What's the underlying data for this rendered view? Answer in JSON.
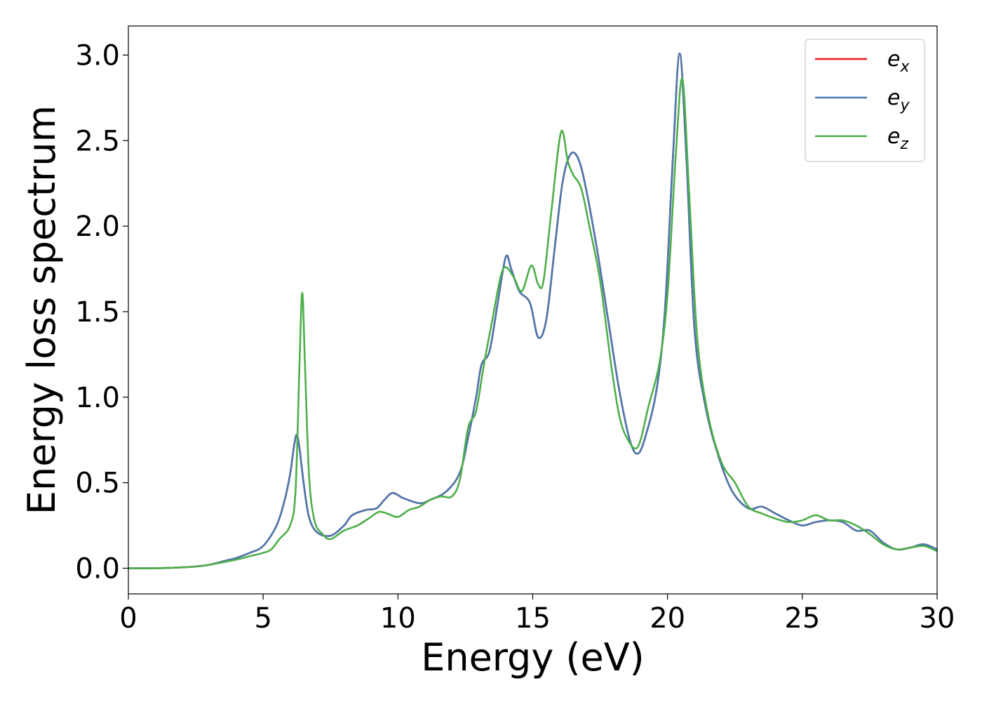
{
  "chart_data": {
    "type": "line",
    "title": "",
    "xlabel": "Energy (eV)",
    "ylabel": "Energy loss spectrum",
    "xlim": [
      0,
      30
    ],
    "ylim": [
      -0.15,
      3.17
    ],
    "xticks": [
      0,
      5,
      10,
      15,
      20,
      25,
      30
    ],
    "xtick_labels": [
      "0",
      "5",
      "10",
      "15",
      "20",
      "25",
      "30"
    ],
    "yticks": [
      0.0,
      0.5,
      1.0,
      1.5,
      2.0,
      2.5,
      3.0
    ],
    "ytick_labels": [
      "0.0",
      "0.5",
      "1.0",
      "1.5",
      "2.0",
      "2.5",
      "3.0"
    ],
    "grid": false,
    "legend_position": "top-right",
    "series": [
      {
        "name": "e_x",
        "label_base": "e",
        "label_sub": "x",
        "color": "#e41a1c",
        "points": [
          [
            0,
            0.0
          ],
          [
            1,
            0.0
          ],
          [
            2,
            0.005
          ],
          [
            2.5,
            0.01
          ],
          [
            3,
            0.02
          ],
          [
            3.5,
            0.04
          ],
          [
            4,
            0.06
          ],
          [
            4.5,
            0.09
          ],
          [
            5,
            0.13
          ],
          [
            5.5,
            0.25
          ],
          [
            5.8,
            0.4
          ],
          [
            6.0,
            0.55
          ],
          [
            6.15,
            0.72
          ],
          [
            6.25,
            0.78
          ],
          [
            6.35,
            0.7
          ],
          [
            6.5,
            0.5
          ],
          [
            6.7,
            0.3
          ],
          [
            7.0,
            0.21
          ],
          [
            7.5,
            0.19
          ],
          [
            8.0,
            0.25
          ],
          [
            8.3,
            0.31
          ],
          [
            8.8,
            0.34
          ],
          [
            9.2,
            0.35
          ],
          [
            9.5,
            0.4
          ],
          [
            9.8,
            0.44
          ],
          [
            10.2,
            0.41
          ],
          [
            10.8,
            0.38
          ],
          [
            11.2,
            0.4
          ],
          [
            11.8,
            0.45
          ],
          [
            12.3,
            0.56
          ],
          [
            12.6,
            0.76
          ],
          [
            12.9,
            1.0
          ],
          [
            13.1,
            1.19
          ],
          [
            13.4,
            1.27
          ],
          [
            13.7,
            1.55
          ],
          [
            14.0,
            1.82
          ],
          [
            14.2,
            1.75
          ],
          [
            14.5,
            1.62
          ],
          [
            14.9,
            1.55
          ],
          [
            15.2,
            1.35
          ],
          [
            15.5,
            1.45
          ],
          [
            15.8,
            1.85
          ],
          [
            16.1,
            2.25
          ],
          [
            16.4,
            2.42
          ],
          [
            16.7,
            2.39
          ],
          [
            17.0,
            2.2
          ],
          [
            17.4,
            1.85
          ],
          [
            17.8,
            1.45
          ],
          [
            18.2,
            1.05
          ],
          [
            18.6,
            0.75
          ],
          [
            18.9,
            0.67
          ],
          [
            19.2,
            0.78
          ],
          [
            19.6,
            1.05
          ],
          [
            19.9,
            1.5
          ],
          [
            20.2,
            2.4
          ],
          [
            20.45,
            3.01
          ],
          [
            20.7,
            2.4
          ],
          [
            21.0,
            1.4
          ],
          [
            21.4,
            0.95
          ],
          [
            21.9,
            0.65
          ],
          [
            22.4,
            0.45
          ],
          [
            23.0,
            0.35
          ],
          [
            23.5,
            0.36
          ],
          [
            24.0,
            0.32
          ],
          [
            24.5,
            0.28
          ],
          [
            25.0,
            0.25
          ],
          [
            25.5,
            0.27
          ],
          [
            26.0,
            0.28
          ],
          [
            26.5,
            0.27
          ],
          [
            27.0,
            0.22
          ],
          [
            27.5,
            0.22
          ],
          [
            28.0,
            0.15
          ],
          [
            28.5,
            0.11
          ],
          [
            29.0,
            0.12
          ],
          [
            29.5,
            0.14
          ],
          [
            30.0,
            0.11
          ]
        ]
      },
      {
        "name": "e_y",
        "label_base": "e",
        "label_sub": "y",
        "color": "#4a79b0",
        "points": [
          [
            0,
            0.0
          ],
          [
            1,
            0.0
          ],
          [
            2,
            0.005
          ],
          [
            2.5,
            0.01
          ],
          [
            3,
            0.02
          ],
          [
            3.5,
            0.04
          ],
          [
            4,
            0.06
          ],
          [
            4.5,
            0.09
          ],
          [
            5,
            0.13
          ],
          [
            5.5,
            0.25
          ],
          [
            5.8,
            0.4
          ],
          [
            6.0,
            0.55
          ],
          [
            6.15,
            0.72
          ],
          [
            6.25,
            0.78
          ],
          [
            6.35,
            0.7
          ],
          [
            6.5,
            0.5
          ],
          [
            6.7,
            0.3
          ],
          [
            7.0,
            0.21
          ],
          [
            7.5,
            0.19
          ],
          [
            8.0,
            0.25
          ],
          [
            8.3,
            0.31
          ],
          [
            8.8,
            0.34
          ],
          [
            9.2,
            0.35
          ],
          [
            9.5,
            0.4
          ],
          [
            9.8,
            0.44
          ],
          [
            10.2,
            0.41
          ],
          [
            10.8,
            0.38
          ],
          [
            11.2,
            0.4
          ],
          [
            11.8,
            0.45
          ],
          [
            12.3,
            0.56
          ],
          [
            12.6,
            0.76
          ],
          [
            12.9,
            1.0
          ],
          [
            13.1,
            1.19
          ],
          [
            13.4,
            1.27
          ],
          [
            13.7,
            1.55
          ],
          [
            14.0,
            1.82
          ],
          [
            14.2,
            1.75
          ],
          [
            14.5,
            1.62
          ],
          [
            14.9,
            1.55
          ],
          [
            15.2,
            1.35
          ],
          [
            15.5,
            1.45
          ],
          [
            15.8,
            1.85
          ],
          [
            16.1,
            2.25
          ],
          [
            16.4,
            2.42
          ],
          [
            16.7,
            2.39
          ],
          [
            17.0,
            2.2
          ],
          [
            17.4,
            1.85
          ],
          [
            17.8,
            1.45
          ],
          [
            18.2,
            1.05
          ],
          [
            18.6,
            0.75
          ],
          [
            18.9,
            0.67
          ],
          [
            19.2,
            0.78
          ],
          [
            19.6,
            1.05
          ],
          [
            19.9,
            1.5
          ],
          [
            20.2,
            2.4
          ],
          [
            20.45,
            3.01
          ],
          [
            20.7,
            2.4
          ],
          [
            21.0,
            1.4
          ],
          [
            21.4,
            0.95
          ],
          [
            21.9,
            0.65
          ],
          [
            22.4,
            0.45
          ],
          [
            23.0,
            0.35
          ],
          [
            23.5,
            0.36
          ],
          [
            24.0,
            0.32
          ],
          [
            24.5,
            0.28
          ],
          [
            25.0,
            0.25
          ],
          [
            25.5,
            0.27
          ],
          [
            26.0,
            0.28
          ],
          [
            26.5,
            0.27
          ],
          [
            27.0,
            0.22
          ],
          [
            27.5,
            0.22
          ],
          [
            28.0,
            0.15
          ],
          [
            28.5,
            0.11
          ],
          [
            29.0,
            0.12
          ],
          [
            29.5,
            0.14
          ],
          [
            30.0,
            0.11
          ]
        ]
      },
      {
        "name": "e_z",
        "label_base": "e",
        "label_sub": "z",
        "color": "#4daf4a",
        "points": [
          [
            0,
            0.0
          ],
          [
            1,
            0.0
          ],
          [
            2,
            0.005
          ],
          [
            2.5,
            0.01
          ],
          [
            3,
            0.02
          ],
          [
            3.5,
            0.035
          ],
          [
            4,
            0.05
          ],
          [
            4.5,
            0.07
          ],
          [
            5,
            0.09
          ],
          [
            5.3,
            0.11
          ],
          [
            5.6,
            0.17
          ],
          [
            6.0,
            0.25
          ],
          [
            6.2,
            0.45
          ],
          [
            6.35,
            1.2
          ],
          [
            6.45,
            1.61
          ],
          [
            6.55,
            1.2
          ],
          [
            6.7,
            0.55
          ],
          [
            6.9,
            0.28
          ],
          [
            7.2,
            0.2
          ],
          [
            7.5,
            0.17
          ],
          [
            8.0,
            0.22
          ],
          [
            8.5,
            0.25
          ],
          [
            9.0,
            0.3
          ],
          [
            9.3,
            0.33
          ],
          [
            9.6,
            0.32
          ],
          [
            10.0,
            0.3
          ],
          [
            10.4,
            0.34
          ],
          [
            10.8,
            0.36
          ],
          [
            11.2,
            0.4
          ],
          [
            11.6,
            0.42
          ],
          [
            12.0,
            0.42
          ],
          [
            12.3,
            0.52
          ],
          [
            12.6,
            0.82
          ],
          [
            12.9,
            0.92
          ],
          [
            13.2,
            1.2
          ],
          [
            13.5,
            1.45
          ],
          [
            13.8,
            1.7
          ],
          [
            14.0,
            1.76
          ],
          [
            14.3,
            1.7
          ],
          [
            14.6,
            1.62
          ],
          [
            14.95,
            1.77
          ],
          [
            15.2,
            1.66
          ],
          [
            15.4,
            1.68
          ],
          [
            15.7,
            2.1
          ],
          [
            16.05,
            2.55
          ],
          [
            16.3,
            2.38
          ],
          [
            16.5,
            2.3
          ],
          [
            16.8,
            2.22
          ],
          [
            17.1,
            2.0
          ],
          [
            17.5,
            1.68
          ],
          [
            17.9,
            1.2
          ],
          [
            18.2,
            0.9
          ],
          [
            18.5,
            0.76
          ],
          [
            18.9,
            0.71
          ],
          [
            19.3,
            0.95
          ],
          [
            19.7,
            1.2
          ],
          [
            20.0,
            1.6
          ],
          [
            20.3,
            2.4
          ],
          [
            20.55,
            2.86
          ],
          [
            20.8,
            2.2
          ],
          [
            21.1,
            1.35
          ],
          [
            21.5,
            0.9
          ],
          [
            22.0,
            0.62
          ],
          [
            22.5,
            0.5
          ],
          [
            23.0,
            0.36
          ],
          [
            23.5,
            0.32
          ],
          [
            24.0,
            0.29
          ],
          [
            24.5,
            0.27
          ],
          [
            25.0,
            0.28
          ],
          [
            25.5,
            0.31
          ],
          [
            26.0,
            0.28
          ],
          [
            26.5,
            0.28
          ],
          [
            27.0,
            0.25
          ],
          [
            27.5,
            0.2
          ],
          [
            28.0,
            0.14
          ],
          [
            28.5,
            0.11
          ],
          [
            29.0,
            0.12
          ],
          [
            29.5,
            0.13
          ],
          [
            30.0,
            0.1
          ]
        ]
      }
    ]
  }
}
